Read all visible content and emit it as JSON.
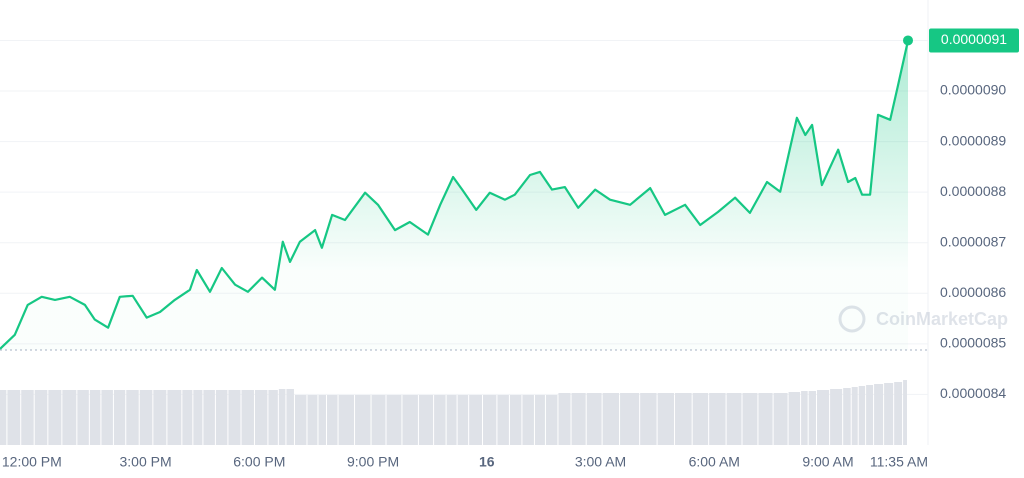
{
  "chart_data": {
    "type": "area",
    "x": [
      -0.84,
      -0.45,
      -0.11,
      0.26,
      0.61,
      1.0,
      1.4,
      1.66,
      2.01,
      2.32,
      2.66,
      3.03,
      3.38,
      3.77,
      4.17,
      4.35,
      4.7,
      5.01,
      5.36,
      5.7,
      6.07,
      6.41,
      6.62,
      6.81,
      7.07,
      7.47,
      7.65,
      7.92,
      8.26,
      8.79,
      9.13,
      9.58,
      9.97,
      10.45,
      10.77,
      11.11,
      11.35,
      11.72,
      12.08,
      12.48,
      12.74,
      13.14,
      13.4,
      13.72,
      14.06,
      14.41,
      14.86,
      15.25,
      15.78,
      16.31,
      16.7,
      17.23,
      17.63,
      18.1,
      18.55,
      18.94,
      19.39,
      19.74,
      20.18,
      20.4,
      20.58,
      20.84,
      21.27,
      21.53,
      21.72,
      21.9,
      22.11,
      22.32,
      22.64,
      22.85,
      23.11
    ],
    "series": [
      {
        "color": "#16c784",
        "values": [
          8.49e-06,
          8.518e-06,
          8.577e-06,
          8.593e-06,
          8.587e-06,
          8.593e-06,
          8.577e-06,
          8.548e-06,
          8.532e-06,
          8.593e-06,
          8.595e-06,
          8.552e-06,
          8.563e-06,
          8.587e-06,
          8.607e-06,
          8.646e-06,
          8.603e-06,
          8.65e-06,
          8.617e-06,
          8.603e-06,
          8.631e-06,
          8.607e-06,
          8.702e-06,
          8.662e-06,
          8.702e-06,
          8.725e-06,
          8.69e-06,
          8.755e-06,
          8.745e-06,
          8.799e-06,
          8.775e-06,
          8.725e-06,
          8.741e-06,
          8.716e-06,
          8.775e-06,
          8.83e-06,
          8.805e-06,
          8.765e-06,
          8.799e-06,
          8.785e-06,
          8.795e-06,
          8.834e-06,
          8.84e-06,
          8.805e-06,
          8.81e-06,
          8.769e-06,
          8.805e-06,
          8.785e-06,
          8.775e-06,
          8.808e-06,
          8.755e-06,
          8.775e-06,
          8.735e-06,
          8.761e-06,
          8.789e-06,
          8.759e-06,
          8.82e-06,
          8.801e-06,
          8.947e-06,
          8.913e-06,
          8.933e-06,
          8.814e-06,
          8.884e-06,
          8.82e-06,
          8.828e-06,
          8.795e-06,
          8.795e-06,
          8.953e-06,
          8.943e-06,
          9.012e-06,
          9.1e-06
        ]
      }
    ],
    "last_label": "0.0000091",
    "volume": [
      55,
      55,
      55,
      55,
      55,
      55,
      55,
      55,
      55,
      55,
      55,
      55,
      55,
      55,
      55,
      55,
      55,
      55,
      55,
      55,
      55,
      55,
      56,
      56,
      50,
      50,
      50,
      50,
      50,
      50,
      50,
      50,
      50,
      50,
      50,
      50,
      50,
      50,
      50,
      50,
      50,
      50,
      50,
      50,
      52,
      52,
      52,
      52,
      52,
      52,
      52,
      52,
      52,
      52,
      52,
      52,
      52,
      52,
      53,
      54,
      54,
      55,
      56,
      57,
      58,
      59,
      60,
      61,
      62,
      63,
      65
    ],
    "volume_lim": [
      0,
      100
    ],
    "xlim": [
      -0.84,
      23.11
    ],
    "xticks": [
      {
        "value": 0,
        "label": "12:00 PM"
      },
      {
        "value": 3,
        "label": "3:00 PM"
      },
      {
        "value": 6,
        "label": "6:00 PM"
      },
      {
        "value": 9,
        "label": "9:00 PM"
      },
      12,
      {
        "value": 15,
        "label": "3:00 AM"
      },
      {
        "value": 18,
        "label": "6:00 AM"
      },
      {
        "value": 21,
        "label": "9:00 AM"
      },
      {
        "value": 23.583,
        "label": "11:35 AM"
      }
    ],
    "ylim": [
      8.3e-06,
      9.18e-06
    ],
    "yticks": [
      {
        "value": 9.1e-06,
        "label": "0.0000091"
      },
      {
        "value": 9e-06,
        "label": "0.0000090"
      },
      {
        "value": 8.9e-06,
        "label": "0.0000089"
      },
      {
        "value": 8.8e-06,
        "label": "0.0000088"
      },
      {
        "value": 8.7e-06,
        "label": "0.0000087"
      },
      {
        "value": 8.6e-06,
        "label": "0.0000086"
      },
      {
        "value": 8.5e-06,
        "label": "0.0000085"
      },
      {
        "value": 8.4e-06,
        "label": "0.0000084"
      }
    ],
    "x_tick_12_label": "16",
    "grid": true,
    "watermark": "CoinMarketCap"
  }
}
